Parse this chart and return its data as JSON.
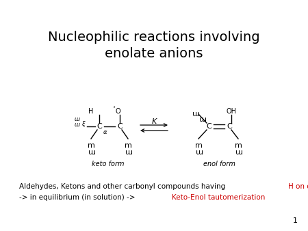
{
  "title_line1": "Nucleophilic reactions involving",
  "title_line2": "enolate anions",
  "title_fontsize": 14,
  "body_text_black1": "Aldehydes, Ketons and other carbonyl compounds having ",
  "body_highlight1": "H on α-C",
  "body_line2_black": "-> in equilibrium (in solution) -> ",
  "body_highlight2": "Keto-Enol tautomerization",
  "highlight_color": "#cc0000",
  "body_fontsize": 7.5,
  "keto_label": "keto form",
  "enol_label": "enol form",
  "equilibrium_K": "K",
  "slide_number": "1",
  "bg_color": "#ffffff",
  "text_color": "#000000"
}
